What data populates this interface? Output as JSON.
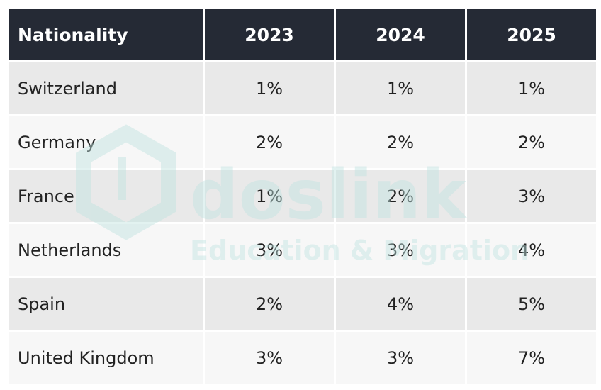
{
  "table": {
    "headers": [
      "Nationality",
      "2023",
      "2024",
      "2025"
    ],
    "rows": [
      [
        "Switzerland",
        "1%",
        "1%",
        "1%"
      ],
      [
        "Germany",
        "2%",
        "2%",
        "2%"
      ],
      [
        "France",
        "1%",
        "2%",
        "3%"
      ],
      [
        "Netherlands",
        "3%",
        "3%",
        "4%"
      ],
      [
        "Spain",
        "2%",
        "4%",
        "5%"
      ],
      [
        "United Kingdom",
        "3%",
        "3%",
        "7%"
      ]
    ]
  },
  "watermark": {
    "brand": "doslink",
    "tagline": "Education & Migration",
    "color": "#bfe3df"
  },
  "colors": {
    "header_bg": "#252a35",
    "header_text": "#ffffff",
    "row_odd_bg": "#e9e9e9",
    "row_even_bg": "#f7f7f7"
  }
}
